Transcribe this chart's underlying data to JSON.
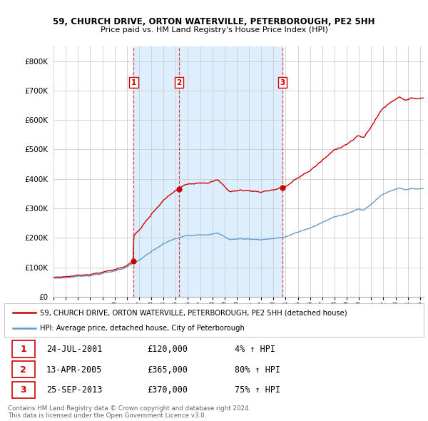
{
  "title1": "59, CHURCH DRIVE, ORTON WATERVILLE, PETERBOROUGH, PE2 5HH",
  "title2": "Price paid vs. HM Land Registry's House Price Index (HPI)",
  "legend_line1": "59, CHURCH DRIVE, ORTON WATERVILLE, PETERBOROUGH, PE2 5HH (detached house)",
  "legend_line2": "HPI: Average price, detached house, City of Peterborough",
  "sale_color": "#cc0000",
  "hpi_color": "#6699cc",
  "shade_color": "#ddeeff",
  "vline_color": "#cc0000",
  "background_color": "#ffffff",
  "grid_color": "#cccccc",
  "transactions": [
    {
      "num": 1,
      "date": "24-JUL-2001",
      "x": 2001.56,
      "price": 120000,
      "pct": "4%",
      "dir": "↑"
    },
    {
      "num": 2,
      "date": "13-APR-2005",
      "x": 2005.28,
      "price": 365000,
      "pct": "80%",
      "dir": "↑"
    },
    {
      "num": 3,
      "date": "25-SEP-2013",
      "x": 2013.73,
      "price": 370000,
      "pct": "75%",
      "dir": "↑"
    }
  ],
  "footer1": "Contains HM Land Registry data © Crown copyright and database right 2024.",
  "footer2": "This data is licensed under the Open Government Licence v3.0.",
  "ylim": [
    0,
    850000
  ],
  "xlim": [
    1995.0,
    2025.3
  ]
}
